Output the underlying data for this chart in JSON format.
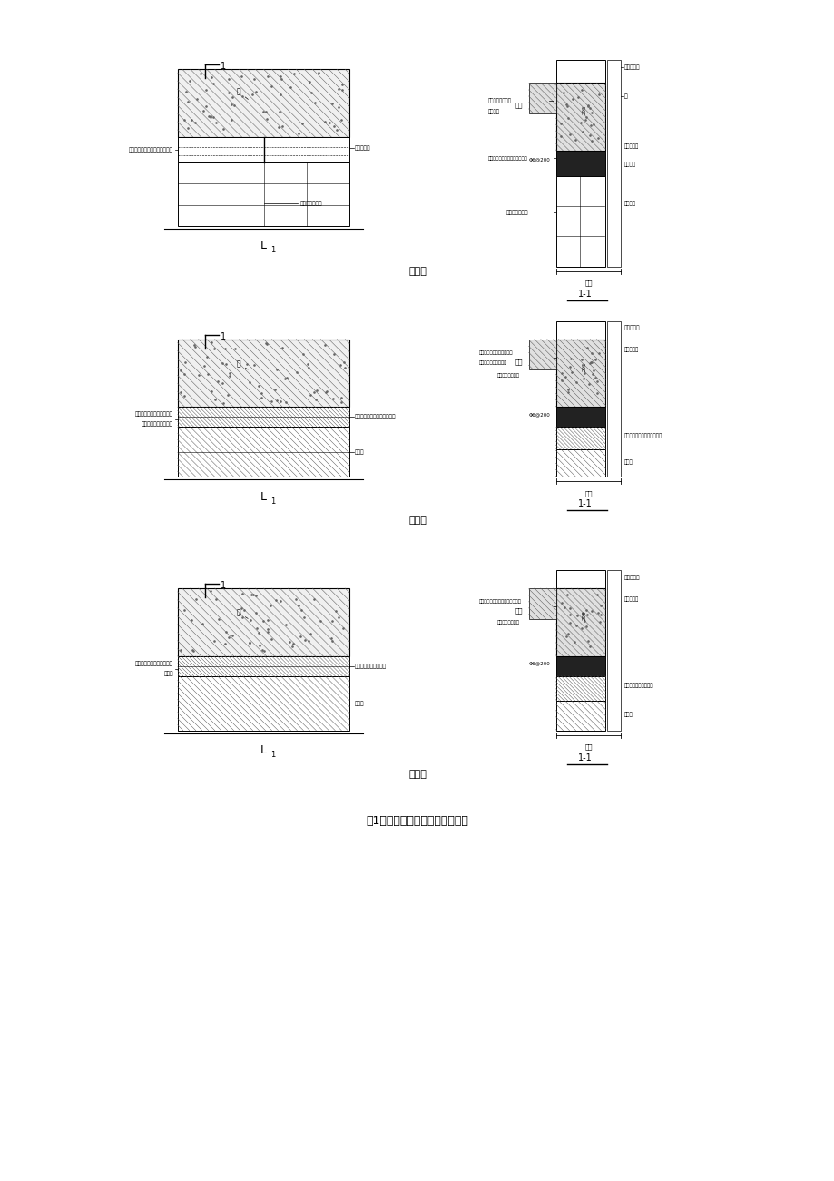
{
  "page_bg": "#ffffff",
  "fig_width": 9.2,
  "fig_height": 13.01,
  "title_fontsize": 8,
  "main_title_fontsize": 9,
  "label_fs": 4.8,
  "small_fs": 4.2,
  "sections": [
    "做法一",
    "做法二",
    "做法三"
  ],
  "main_title": "图1外墙混凝土梁下砌体节点做法",
  "fa1_left_labels": [
    "自重块加气混凝土砌块切割后充",
    "灌砂浆做墙"
  ],
  "fa1_right_label": "加气混凝土砌块",
  "fa2_left_label1": "混凝土梁下覆铜排铅实心砖",
  "fa2_left_label2": "（室与多孔砖同材质）",
  "fa2_right_label1": "实心砖（室与多孔砖同材质）",
  "fa2_right_label2": "多孔砖",
  "fa3_left_label1": "文翻砌，厚与多孔砖同材质",
  "fa3_left_label2": "实心砖",
  "fa3_right_label1": "与多孔砖同材质实心砖",
  "fa3_right_label2": "多孔砖"
}
